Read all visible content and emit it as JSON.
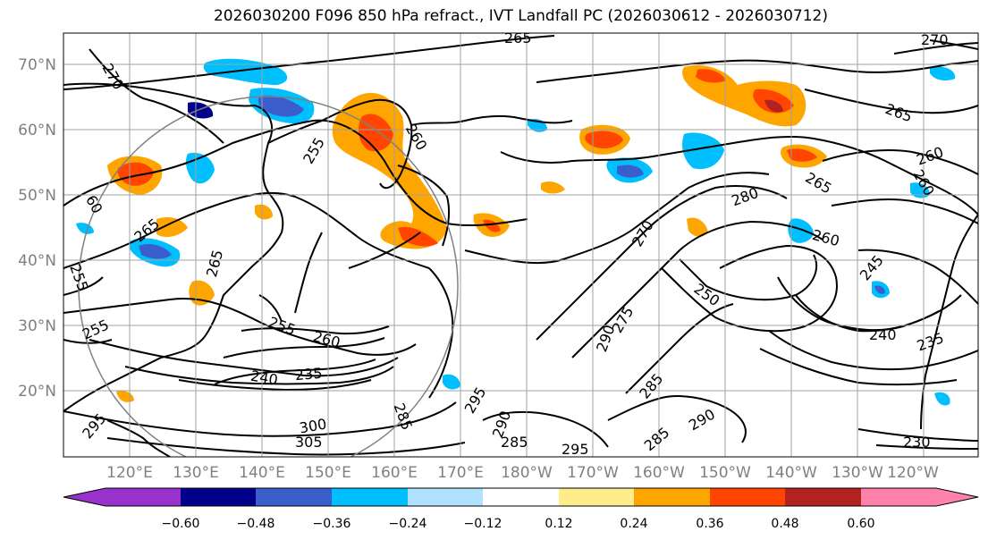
{
  "title": "2026030200 F096 850 hPa refract., IVT Landfall PC (2026030612 - 2026030712)",
  "lat_labels": [
    "70°N",
    "60°N",
    "50°N",
    "40°N",
    "30°N",
    "20°N"
  ],
  "lon_labels": [
    "120°E",
    "130°E",
    "140°E",
    "150°E",
    "160°E",
    "170°E",
    "180°W",
    "170°W",
    "160°W",
    "150°W",
    "140°W",
    "130°W",
    "120°W"
  ],
  "colorbar": {
    "ticks": [
      "−0.60",
      "−0.48",
      "−0.36",
      "−0.24",
      "−0.12",
      "0.12",
      "0.24",
      "0.36",
      "0.48",
      "0.60"
    ],
    "colors": [
      "#9932cc",
      "#00008b",
      "#3a5fcd",
      "#00bfff",
      "#b0e2ff",
      "#ffffff",
      "#ffec8b",
      "#ffa500",
      "#ff4500",
      "#b22222",
      "#ff82ab"
    ]
  },
  "contour_labels": [
    "265",
    "270",
    "270",
    "265",
    "255",
    "260",
    "260",
    "260",
    "265",
    "280",
    "260",
    "270",
    "250",
    "245",
    "240",
    "235",
    "265",
    "255",
    "255",
    "260",
    "240",
    "235",
    "265",
    "255",
    "285",
    "295",
    "300",
    "305",
    "290",
    "285",
    "285",
    "290",
    "295",
    "285",
    "290",
    "275",
    "295",
    "230",
    "60"
  ]
}
